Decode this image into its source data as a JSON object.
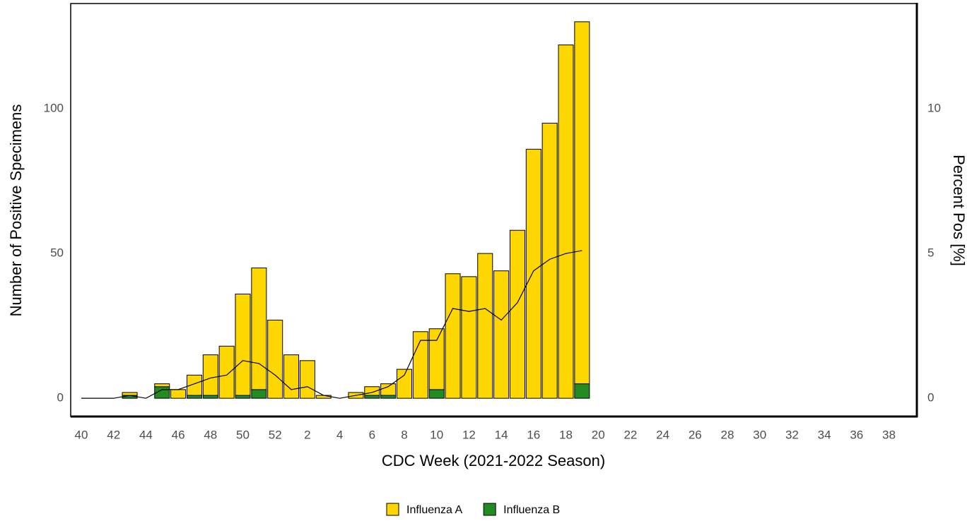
{
  "chart_data": {
    "type": "bar",
    "stacked": true,
    "x_label": "CDC Week (2021-2022 Season)",
    "y_label": "Number of Positive Specimens",
    "y2_label": "Percent Pos [%]",
    "categories": [
      "40",
      null,
      "42",
      null,
      "44",
      null,
      "46",
      null,
      "48",
      null,
      "50",
      null,
      "52",
      null,
      "2",
      null,
      "4",
      null,
      "6",
      null,
      "8",
      null,
      "10",
      null,
      "12",
      null,
      "14",
      null,
      "16",
      null,
      "18",
      null,
      "20",
      null,
      "22",
      null,
      "24",
      null,
      "26",
      null,
      "28",
      null,
      "30",
      null,
      "32",
      null,
      "34",
      null,
      "36",
      null,
      "38",
      null
    ],
    "series": [
      {
        "name": "Influenza A",
        "color": "#ffd700",
        "values": [
          0,
          0,
          0,
          1,
          0,
          1,
          3,
          7,
          14,
          18,
          35,
          42,
          27,
          15,
          13,
          1,
          0,
          2,
          3,
          4,
          10,
          23,
          21,
          43,
          42,
          50,
          44,
          58,
          86,
          95,
          122,
          125,
          null,
          null,
          null,
          null,
          null,
          null,
          null,
          null,
          null,
          null,
          null,
          null,
          null,
          null,
          null,
          null,
          null,
          null,
          null,
          null
        ]
      },
      {
        "name": "Influenza B",
        "color": "#228b22",
        "values": [
          0,
          0,
          0,
          1,
          0,
          4,
          0,
          1,
          1,
          0,
          1,
          3,
          0,
          0,
          0,
          0,
          0,
          0,
          1,
          1,
          0,
          0,
          3,
          0,
          0,
          0,
          0,
          0,
          0,
          0,
          0,
          5,
          null,
          null,
          null,
          null,
          null,
          null,
          null,
          null,
          null,
          null,
          null,
          null,
          null,
          null,
          null,
          null,
          null,
          null,
          null,
          null
        ]
      },
      {
        "type": "line",
        "axis": "y2",
        "color": "#000000",
        "values": [
          0,
          0,
          0,
          0.1,
          0,
          0.3,
          0.3,
          0.5,
          0.7,
          0.8,
          1.3,
          1.2,
          0.8,
          0.3,
          0.4,
          0.1,
          0,
          0.1,
          0.2,
          0.4,
          0.8,
          2.0,
          2.0,
          3.1,
          3.0,
          3.1,
          2.7,
          3.3,
          4.4,
          4.8,
          5.0,
          5.1,
          null,
          null,
          null,
          null,
          null,
          null,
          null,
          null,
          null,
          null,
          null,
          null,
          null,
          null,
          null,
          null,
          null,
          null,
          null,
          null
        ]
      }
    ],
    "ylim": [
      -6.3,
      136.3
    ],
    "yticks": [
      0,
      50,
      100
    ],
    "y2lim": [
      -0.63,
      13.63
    ],
    "y2ticks": [
      0,
      5,
      10
    ],
    "legend": "bottom"
  }
}
